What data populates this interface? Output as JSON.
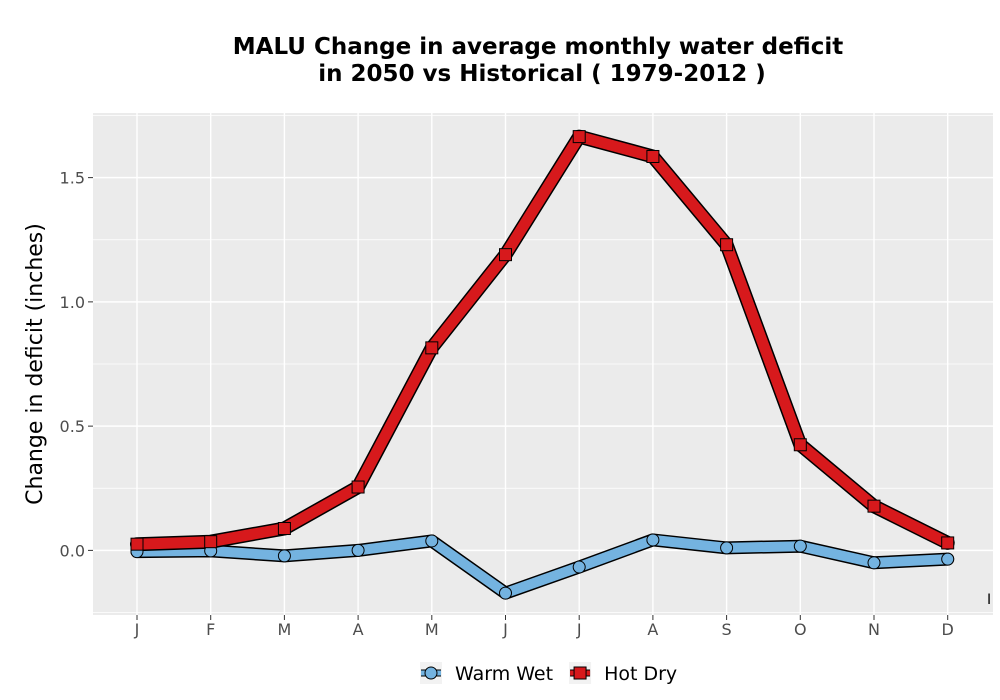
{
  "chart_data": {
    "type": "line",
    "title_line1": "MALU  Change in average monthly water deficit",
    "title_line2": "in 2050 vs Historical ( 1979-2012 )",
    "ylabel": "Change in deficit (inches)",
    "categories": [
      "J",
      "F",
      "M",
      "A",
      "M",
      "J",
      "J",
      "A",
      "S",
      "O",
      "N",
      "D"
    ],
    "yticks": [
      0.0,
      0.5,
      1.0,
      1.5
    ],
    "ytick_labels": [
      "0.0",
      "0.5",
      "1.0",
      "1.5"
    ],
    "ylim": [
      -0.26,
      1.76
    ],
    "grid": true,
    "legend_position": "bottom",
    "edge_mark": "I",
    "series": [
      {
        "name": "Warm Wet",
        "marker": "circle",
        "color": "#74b3e0",
        "values": [
          -0.005,
          -0.002,
          -0.022,
          0.0,
          0.038,
          -0.172,
          -0.067,
          0.042,
          0.01,
          0.017,
          -0.05,
          -0.035
        ]
      },
      {
        "name": "Hot Dry",
        "marker": "square",
        "color": "#d7191c",
        "values": [
          0.025,
          0.035,
          0.088,
          0.255,
          0.815,
          1.19,
          1.665,
          1.585,
          1.23,
          0.425,
          0.178,
          0.03
        ]
      }
    ]
  }
}
